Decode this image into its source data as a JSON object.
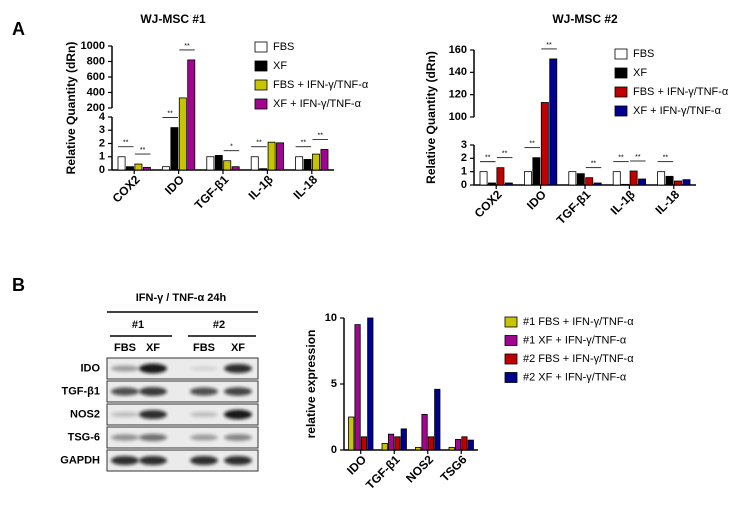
{
  "panel_labels": [
    "A",
    "B"
  ],
  "chart_data": [
    {
      "type": "bar",
      "title": "WJ-MSC #1",
      "y_label": "Relative Quantity (dRn)",
      "categories": [
        "COX2",
        "IDO",
        "TGF-β1",
        "IL-1β",
        "IL-18"
      ],
      "ylim": [
        0,
        1000
      ],
      "ybreak": [
        4,
        200
      ],
      "yticks": [
        0,
        1,
        2,
        3,
        4,
        200,
        400,
        600,
        800,
        1000
      ],
      "series": [
        {
          "name": "FBS",
          "color": "#ffffff",
          "values": [
            1,
            0.25,
            1,
            1,
            1
          ]
        },
        {
          "name": "XF",
          "color": "#000000",
          "values": [
            0.25,
            3.2,
            1.1,
            0.1,
            0.8
          ]
        },
        {
          "name": "FBS + IFN-γ/TNF-α",
          "color": "#c8c400",
          "values": [
            0.45,
            330,
            0.7,
            2.1,
            1.2
          ]
        },
        {
          "name": "XF + IFN-γ/TNF-α",
          "color": "#a2058e",
          "values": [
            0.2,
            820,
            0.25,
            2.05,
            1.55
          ]
        }
      ],
      "significance": [
        [
          "**",
          "**"
        ],
        [
          "**",
          "**"
        ],
        [
          null,
          "*"
        ],
        [
          "**",
          null
        ],
        [
          "**",
          "**"
        ]
      ]
    },
    {
      "type": "bar",
      "title": "WJ-MSC #2",
      "y_label": "Relative Quantity (dRn)",
      "categories": [
        "COX2",
        "IDO",
        "TGF-β1",
        "IL-1β",
        "IL-18"
      ],
      "ylim": [
        0,
        160
      ],
      "ybreak": [
        3,
        100
      ],
      "yticks": [
        0,
        1,
        2,
        3,
        100,
        120,
        140,
        160
      ],
      "series": [
        {
          "name": "FBS",
          "color": "#ffffff",
          "values": [
            1,
            1,
            1,
            1,
            1
          ]
        },
        {
          "name": "XF",
          "color": "#000000",
          "values": [
            0.15,
            2.05,
            0.85,
            0.05,
            0.65
          ]
        },
        {
          "name": "FBS + IFN-γ/TNF-α",
          "color": "#c00000",
          "values": [
            1.3,
            113,
            0.55,
            1.05,
            0.3
          ]
        },
        {
          "name": "XF + IFN-γ/TNF-α",
          "color": "#000090",
          "values": [
            0.15,
            152,
            0.15,
            0.45,
            0.4
          ]
        }
      ],
      "significance": [
        [
          "**",
          "**"
        ],
        [
          "**",
          "**"
        ],
        [
          null,
          "**"
        ],
        [
          "**",
          "**"
        ],
        [
          "**",
          null
        ]
      ]
    },
    {
      "type": "bar",
      "y_label": "relative expression",
      "categories": [
        "IDO",
        "TGF-β1",
        "NOS2",
        "TSG6"
      ],
      "ylim": [
        0,
        10
      ],
      "yticks": [
        0,
        5,
        10
      ],
      "series": [
        {
          "name": "#1 FBS + IFN-γ/TNF-α",
          "color": "#c8c400",
          "values": [
            2.5,
            0.5,
            0.2,
            0.2
          ]
        },
        {
          "name": "#1 XF + IFN-γ/TNF-α",
          "color": "#a2058e",
          "values": [
            9.5,
            1.2,
            2.7,
            0.8
          ]
        },
        {
          "name": "#2 FBS + IFN-γ/TNF-α",
          "color": "#c00000",
          "values": [
            1,
            1,
            1,
            1
          ]
        },
        {
          "name": "#2 XF + IFN-γ/TNF-α",
          "color": "#000090",
          "values": [
            10,
            1.6,
            4.6,
            0.75
          ]
        }
      ]
    }
  ],
  "blot": {
    "treatment": "IFN-γ / TNF-α 24h",
    "donors": [
      "#1",
      "#2"
    ],
    "lanes": [
      "FBS",
      "XF",
      "FBS",
      "XF"
    ],
    "rows": [
      "IDO",
      "TGF-β1",
      "NOS2",
      "TSG-6",
      "GAPDH"
    ]
  }
}
